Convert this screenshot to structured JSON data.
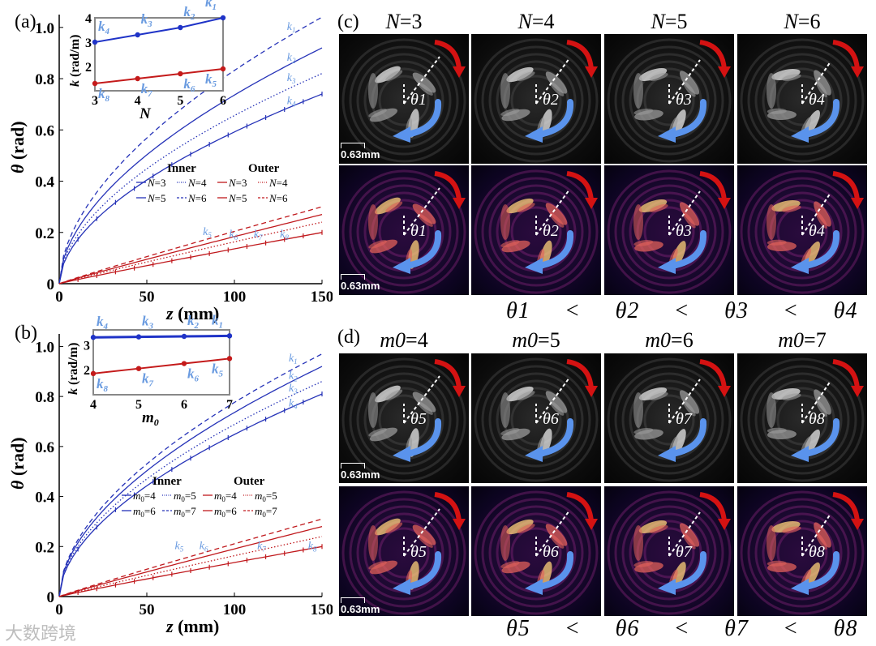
{
  "panels": {
    "a": "(a)",
    "b": "(b)",
    "c": "(c)",
    "d": "(d)"
  },
  "colors": {
    "inner": "#2633b8",
    "outer": "#c0191d",
    "inner_label": "#6a9be0",
    "dot_blue": "#1f33c7",
    "dot_red": "#c41a1a",
    "arrow_red": "#d41212",
    "arrow_blue": "#5a93ec"
  },
  "chart_data": [
    {
      "id": "a",
      "type": "line",
      "xlabel": "z (mm)",
      "ylabel": "θ (rad)",
      "xlim": [
        0,
        150
      ],
      "ylim": [
        0,
        1.05
      ],
      "xticks": [
        0,
        50,
        100,
        150
      ],
      "yticks": [
        0,
        0.2,
        0.4,
        0.6,
        0.8,
        1.0
      ],
      "ytick_labels": [
        "0",
        "0.2",
        "0.4",
        "0.6",
        "0.8",
        "1.0"
      ],
      "legend": {
        "inner_title": "Inner",
        "outer_title": "Outer",
        "inner": [
          "N=3",
          "N=4",
          "N=5",
          "N=6"
        ],
        "outer": [
          "N=3",
          "N=4",
          "N=5",
          "N=6"
        ]
      },
      "series": [
        {
          "name": "Inner N=6",
          "group": "inner",
          "dash": "dashed",
          "end": 1.04,
          "mid": 0.65,
          "curve": "sqrt"
        },
        {
          "name": "Inner N=5",
          "group": "inner",
          "dash": "solid",
          "end": 0.92,
          "mid": 0.58,
          "curve": "sqrt"
        },
        {
          "name": "Inner N=4",
          "group": "inner",
          "dash": "dotted",
          "end": 0.82,
          "mid": 0.52,
          "curve": "sqrt"
        },
        {
          "name": "Inner N=3",
          "group": "inner",
          "dash": "marked",
          "end": 0.74,
          "mid": 0.44,
          "curve": "sqrt"
        },
        {
          "name": "Outer N=6",
          "group": "outer",
          "dash": "dashed",
          "end": 0.3,
          "curve": "lin"
        },
        {
          "name": "Outer N=5",
          "group": "outer",
          "dash": "solid",
          "end": 0.27,
          "curve": "lin"
        },
        {
          "name": "Outer N=4",
          "group": "outer",
          "dash": "dotted",
          "end": 0.24,
          "curve": "lin"
        },
        {
          "name": "Outer N=3",
          "group": "outer",
          "dash": "marked",
          "end": 0.2,
          "curve": "lin"
        }
      ],
      "curve_labels": [
        {
          "text": "k1",
          "z": 130,
          "theta": 0.99
        },
        {
          "text": "k2",
          "z": 130,
          "theta": 0.87
        },
        {
          "text": "k3",
          "z": 130,
          "theta": 0.79
        },
        {
          "text": "k4",
          "z": 130,
          "theta": 0.7
        },
        {
          "text": "k5",
          "z": 82,
          "theta": 0.19
        },
        {
          "text": "k6",
          "z": 97,
          "theta": 0.18
        },
        {
          "text": "k7",
          "z": 111,
          "theta": 0.18
        },
        {
          "text": "k8",
          "z": 126,
          "theta": 0.18
        }
      ],
      "inset": {
        "xlabel": "N",
        "ylabel": "k (rad/m)",
        "x": [
          3,
          4,
          5,
          6
        ],
        "xticks": [
          3,
          4,
          5,
          6
        ],
        "ylim": [
          1,
          4
        ],
        "yticks": [
          2,
          3,
          4
        ],
        "inner": [
          3.0,
          3.3,
          3.6,
          4.0
        ],
        "outer": [
          1.3,
          1.5,
          1.7,
          1.9
        ],
        "inner_labels": [
          "k4",
          "k3",
          "k2",
          "k1"
        ],
        "outer_labels": [
          "k8",
          "k7",
          "k6",
          "k5"
        ]
      }
    },
    {
      "id": "b",
      "type": "line",
      "xlabel": "z (mm)",
      "ylabel": "θ (rad)",
      "xlim": [
        0,
        150
      ],
      "ylim": [
        0,
        1.05
      ],
      "xticks": [
        0,
        50,
        100,
        150
      ],
      "yticks": [
        0,
        0.2,
        0.4,
        0.6,
        0.8,
        1.0
      ],
      "ytick_labels": [
        "0",
        "0.2",
        "0.4",
        "0.6",
        "0.8",
        "1.0"
      ],
      "legend": {
        "inner_title": "Inner",
        "outer_title": "Outer",
        "inner": [
          "m0=4",
          "m0=5",
          "m0=6",
          "m0=7"
        ],
        "outer": [
          "m0=4",
          "m0=5",
          "m0=6",
          "m0=7"
        ]
      },
      "series": [
        {
          "name": "Inner m0=7",
          "group": "inner",
          "dash": "dashed",
          "end": 0.97,
          "mid": 0.62,
          "curve": "sqrt"
        },
        {
          "name": "Inner m0=6",
          "group": "inner",
          "dash": "solid",
          "end": 0.92,
          "mid": 0.58,
          "curve": "sqrt"
        },
        {
          "name": "Inner m0=5",
          "group": "inner",
          "dash": "dotted",
          "end": 0.86,
          "mid": 0.54,
          "curve": "sqrt"
        },
        {
          "name": "Inner m0=4",
          "group": "inner",
          "dash": "marked",
          "end": 0.81,
          "mid": 0.5,
          "curve": "sqrt"
        },
        {
          "name": "Outer m0=7",
          "group": "outer",
          "dash": "dashed",
          "end": 0.31,
          "curve": "lin"
        },
        {
          "name": "Outer m0=6",
          "group": "outer",
          "dash": "solid",
          "end": 0.28,
          "curve": "lin"
        },
        {
          "name": "Outer m0=5",
          "group": "outer",
          "dash": "dotted",
          "end": 0.24,
          "curve": "lin"
        },
        {
          "name": "Outer m0=4",
          "group": "outer",
          "dash": "marked",
          "end": 0.2,
          "curve": "lin"
        }
      ],
      "curve_labels": [
        {
          "text": "k1",
          "z": 131,
          "theta": 0.94
        },
        {
          "text": "k2",
          "z": 131,
          "theta": 0.87
        },
        {
          "text": "k3",
          "z": 131,
          "theta": 0.82
        },
        {
          "text": "k4",
          "z": 131,
          "theta": 0.76
        },
        {
          "text": "k5",
          "z": 66,
          "theta": 0.19
        },
        {
          "text": "k6",
          "z": 80,
          "theta": 0.19
        },
        {
          "text": "k7",
          "z": 113,
          "theta": 0.19
        },
        {
          "text": "k8",
          "z": 142,
          "theta": 0.19
        }
      ],
      "inset": {
        "xlabel": "m0",
        "ylabel": "k (rad/m)",
        "x": [
          4,
          5,
          6,
          7
        ],
        "xticks": [
          4,
          5,
          6,
          7
        ],
        "ylim": [
          1,
          3.6
        ],
        "yticks": [
          2,
          3
        ],
        "inner": [
          3.3,
          3.32,
          3.34,
          3.36
        ],
        "outer": [
          1.85,
          2.05,
          2.25,
          2.45
        ],
        "inner_labels": [
          "k4",
          "k3",
          "k2",
          "k1"
        ],
        "outer_labels": [
          "k8",
          "k7",
          "k6",
          "k5"
        ]
      }
    }
  ],
  "section_c": {
    "titles": [
      {
        "var": "N",
        "val": "=3"
      },
      {
        "var": "N",
        "val": "=4"
      },
      {
        "var": "N",
        "val": "=5"
      },
      {
        "var": "N",
        "val": "=6"
      }
    ],
    "angles": [
      "θ1",
      "θ2",
      "θ3",
      "θ4"
    ],
    "scale": "0.63mm",
    "inequality": [
      "θ1",
      "<",
      "θ2",
      "<",
      "θ3",
      "<",
      "θ4"
    ]
  },
  "section_d": {
    "titles": [
      {
        "var": "m0",
        "val": "=4"
      },
      {
        "var": "m0",
        "val": "=5"
      },
      {
        "var": "m0",
        "val": "=6"
      },
      {
        "var": "m0",
        "val": "=7"
      }
    ],
    "angles": [
      "θ5",
      "θ6",
      "θ7",
      "θ8"
    ],
    "scale": "0.63mm",
    "inequality": [
      "θ5",
      "<",
      "θ6",
      "<",
      "θ7",
      "<",
      "θ8"
    ]
  },
  "watermark": "大数跨境"
}
